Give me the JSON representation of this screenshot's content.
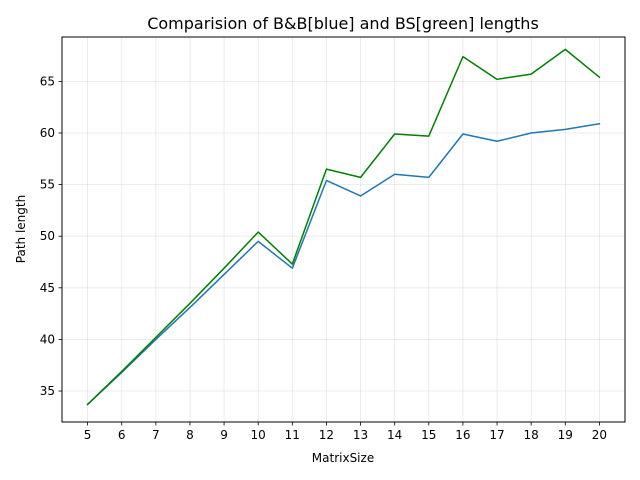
{
  "chart_data": {
    "type": "line",
    "title": "Comparision of B&B[blue] and BS[green] lengths",
    "xlabel": "MatrixSize",
    "ylabel": "Path length",
    "x": [
      5,
      6,
      7,
      8,
      9,
      10,
      11,
      12,
      13,
      14,
      15,
      16,
      17,
      18,
      19,
      20
    ],
    "xlim": [
      4.25,
      20.75
    ],
    "ylim": [
      32.0,
      69.3
    ],
    "yticks": [
      35,
      40,
      45,
      50,
      55,
      60,
      65
    ],
    "grid": true,
    "series": [
      {
        "color": "#1f77b4",
        "values": [
          33.7,
          36.8,
          40.0,
          43.1,
          46.3,
          49.5,
          46.9,
          55.4,
          53.9,
          56.0,
          55.7,
          59.9,
          59.2,
          60.0,
          60.35,
          60.9
        ]
      },
      {
        "color": "#008000",
        "values": [
          33.7,
          36.9,
          40.2,
          43.5,
          46.9,
          50.4,
          47.3,
          56.5,
          55.7,
          59.9,
          59.7,
          67.4,
          65.2,
          65.7,
          68.1,
          65.4
        ]
      }
    ]
  }
}
